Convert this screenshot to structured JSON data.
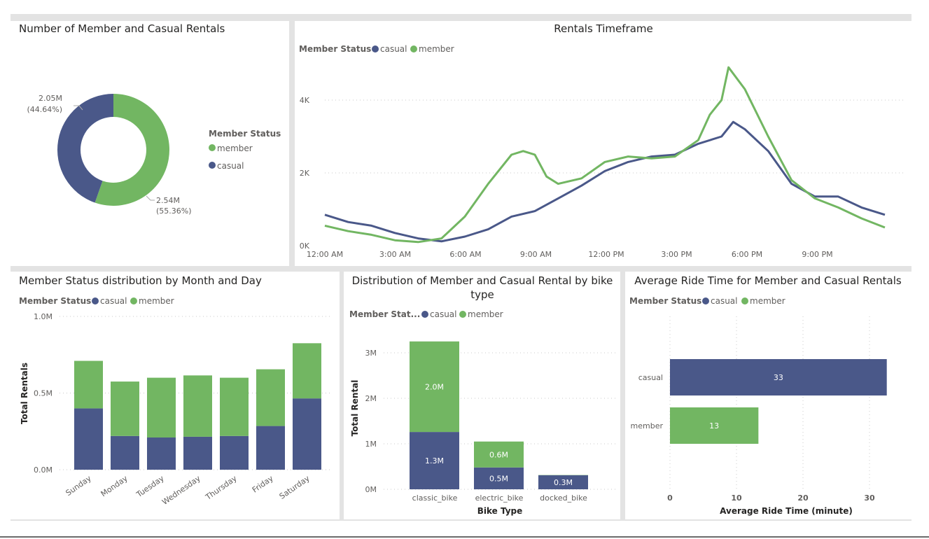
{
  "colors": {
    "casual": "#4a5889",
    "member": "#72b662"
  },
  "legend_title": "Member Status",
  "legend_title_short": "Member Stat...",
  "series_names": {
    "casual": "casual",
    "member": "member"
  },
  "donut": {
    "title": "Number of Member and Casual Rentals",
    "slices": [
      {
        "name": "member",
        "value_label": "2.54M",
        "pct_label": "(55.36%)",
        "pct": 55.36
      },
      {
        "name": "casual",
        "value_label": "2.05M",
        "pct_label": "(44.64%)",
        "pct": 44.64
      }
    ]
  },
  "chart_data": [
    {
      "type": "line",
      "title": "Rentals Timeframe",
      "x_unit": "hour of day",
      "x_ticks": [
        "12:00 AM",
        "3:00 AM",
        "6:00 AM",
        "9:00 AM",
        "12:00 PM",
        "3:00 PM",
        "6:00 PM",
        "9:00 PM"
      ],
      "y_ticks": [
        "0K",
        "2K",
        "4K"
      ],
      "ylim": [
        0,
        5
      ],
      "grid": true,
      "legend": "top-left",
      "series": [
        {
          "name": "casual",
          "x": [
            0,
            1,
            2,
            3,
            4,
            5,
            6,
            7,
            8,
            9,
            10,
            11,
            12,
            13,
            14,
            15,
            16,
            17,
            17.5,
            18,
            19,
            20,
            21,
            22,
            23,
            24
          ],
          "y": [
            0.85,
            0.65,
            0.55,
            0.35,
            0.2,
            0.12,
            0.25,
            0.45,
            0.8,
            0.95,
            1.3,
            1.65,
            2.05,
            2.3,
            2.45,
            2.5,
            2.8,
            3.0,
            3.4,
            3.2,
            2.6,
            1.7,
            1.35,
            1.35,
            1.05,
            0.85
          ]
        },
        {
          "name": "member",
          "x": [
            0,
            1,
            2,
            3,
            4,
            5,
            6,
            7,
            8,
            8.5,
            9,
            9.5,
            10,
            11,
            12,
            13,
            14,
            15,
            16,
            16.5,
            17,
            17.3,
            18,
            19,
            20,
            21,
            22,
            23,
            24
          ],
          "y": [
            0.55,
            0.4,
            0.3,
            0.15,
            0.1,
            0.2,
            0.8,
            1.7,
            2.5,
            2.6,
            2.5,
            1.9,
            1.7,
            1.85,
            2.3,
            2.45,
            2.4,
            2.45,
            2.9,
            3.6,
            4.0,
            4.9,
            4.3,
            3.0,
            1.8,
            1.3,
            1.05,
            0.75,
            0.5
          ]
        }
      ]
    },
    {
      "type": "bar",
      "stacked": true,
      "title": "Member Status distribution by Month and Day",
      "ylabel": "Total Rentals",
      "categories": [
        "Sunday",
        "Monday",
        "Tuesday",
        "Wednesday",
        "Thursday",
        "Friday",
        "Saturday"
      ],
      "y_ticks": [
        "0.0M",
        "0.5M",
        "1.0M"
      ],
      "ylim": [
        0,
        1.0
      ],
      "series": [
        {
          "name": "casual",
          "values": [
            0.4,
            0.22,
            0.21,
            0.215,
            0.22,
            0.285,
            0.465
          ]
        },
        {
          "name": "member",
          "values": [
            0.31,
            0.355,
            0.39,
            0.4,
            0.38,
            0.37,
            0.36
          ]
        }
      ]
    },
    {
      "type": "bar",
      "stacked": true,
      "title": "Distribution of Member and Casual Rental by bike type",
      "xlabel": "Bike Type",
      "ylabel": "Total Rental",
      "categories": [
        "classic_bike",
        "electric_bike",
        "docked_bike"
      ],
      "y_ticks": [
        "0M",
        "1M",
        "2M",
        "3M"
      ],
      "ylim": [
        0,
        3.3
      ],
      "series": [
        {
          "name": "casual",
          "values": [
            1.26,
            0.48,
            0.31
          ],
          "labels": [
            "1.3M",
            "0.5M",
            "0.3M"
          ]
        },
        {
          "name": "member",
          "values": [
            1.99,
            0.57,
            0.005
          ],
          "labels": [
            "2.0M",
            "0.6M",
            ""
          ]
        }
      ]
    },
    {
      "type": "bar",
      "orientation": "horizontal",
      "title": "Average Ride Time for Member and Casual Rentals",
      "xlabel": "Average Ride Time (minute)",
      "categories": [
        "casual",
        "member"
      ],
      "values": [
        32.6,
        13.3
      ],
      "labels": [
        "33",
        "13"
      ],
      "x_ticks": [
        "0",
        "10",
        "20",
        "30"
      ],
      "xlim": [
        0,
        35
      ]
    }
  ]
}
